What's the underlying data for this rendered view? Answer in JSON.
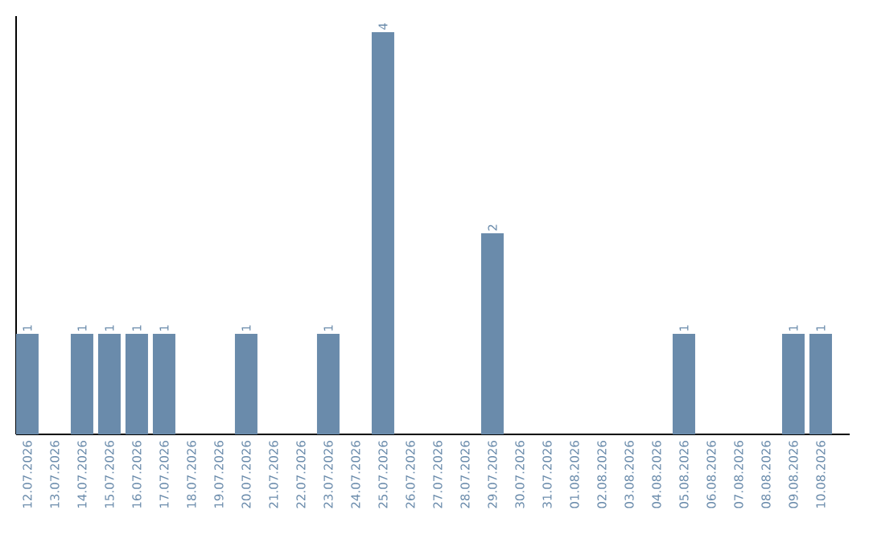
{
  "chart_data": {
    "type": "bar",
    "categories": [
      "12.07.2026",
      "13.07.2026",
      "14.07.2026",
      "15.07.2026",
      "16.07.2026",
      "17.07.2026",
      "18.07.2026",
      "19.07.2026",
      "20.07.2026",
      "21.07.2026",
      "22.07.2026",
      "23.07.2026",
      "24.07.2026",
      "25.07.2026",
      "26.07.2026",
      "27.07.2026",
      "28.07.2026",
      "29.07.2026",
      "30.07.2026",
      "31.07.2026",
      "01.08.2026",
      "02.08.2026",
      "03.08.2026",
      "04.08.2026",
      "05.08.2026",
      "06.08.2026",
      "07.08.2026",
      "08.08.2026",
      "09.08.2026",
      "10.08.2026"
    ],
    "values": [
      1,
      0,
      1,
      1,
      1,
      1,
      0,
      0,
      1,
      0,
      0,
      1,
      0,
      4,
      0,
      0,
      0,
      2,
      0,
      0,
      0,
      0,
      0,
      0,
      1,
      0,
      0,
      0,
      1,
      1
    ],
    "value_labels": [
      "1",
      null,
      "1",
      "1",
      "1",
      "1",
      null,
      null,
      "1",
      null,
      null,
      "1",
      null,
      "4",
      null,
      null,
      null,
      "2",
      null,
      null,
      null,
      null,
      null,
      null,
      "1",
      null,
      null,
      null,
      "1",
      "1"
    ],
    "color": "#6a8bab"
  }
}
